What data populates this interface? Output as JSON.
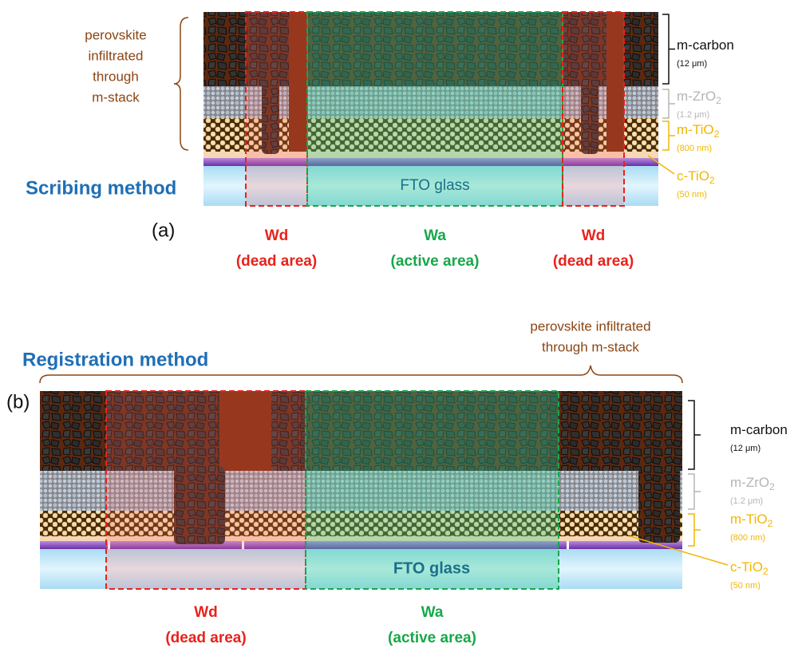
{
  "panel_a": {
    "title": "Scribing method",
    "panel_label": "(a)",
    "perovskite_note": [
      "perovskite",
      "infiltrated",
      "through",
      "m-stack"
    ],
    "substrate": "FTO glass",
    "layers": [
      {
        "name": "m-carbon",
        "thickness": "(12 μm)"
      },
      {
        "name": "m-ZrO",
        "sub": "2",
        "thickness": "(1.2 μm)"
      },
      {
        "name": "m-TiO",
        "sub": "2",
        "thickness": "(800 nm)"
      },
      {
        "name": "c-TiO",
        "sub": "2",
        "thickness": "(50 nm)"
      }
    ],
    "regions": [
      {
        "name": "Wd",
        "desc": "(dead area)"
      },
      {
        "name": "Wa",
        "desc": "(active area)"
      },
      {
        "name": "Wd",
        "desc": "(dead area)"
      }
    ]
  },
  "panel_b": {
    "title": "Registration method",
    "panel_label": "(b)",
    "perovskite_note": [
      "perovskite infiltrated",
      "through m-stack"
    ],
    "substrate": "FTO glass",
    "layers": [
      {
        "name": "m-carbon",
        "thickness": "(12 μm)"
      },
      {
        "name": "m-ZrO",
        "sub": "2",
        "thickness": "(1.2 μm)"
      },
      {
        "name": "m-TiO",
        "sub": "2",
        "thickness": "(800 nm)"
      },
      {
        "name": "c-TiO",
        "sub": "2",
        "thickness": "(50 nm)"
      }
    ],
    "regions": [
      {
        "name": "Wd",
        "desc": "(dead area)"
      },
      {
        "name": "Wa",
        "desc": "(active area)"
      }
    ]
  }
}
